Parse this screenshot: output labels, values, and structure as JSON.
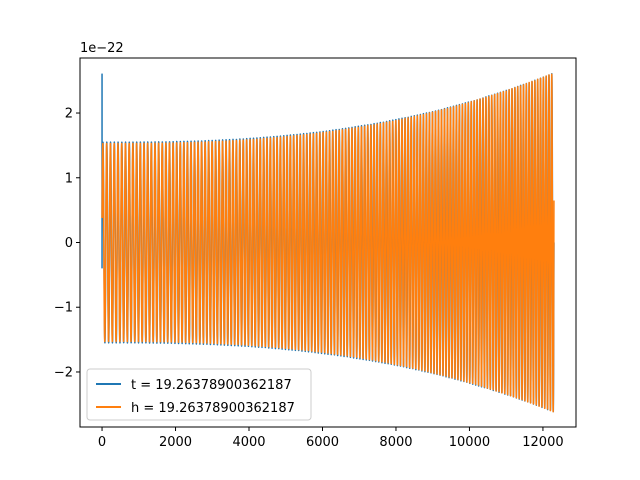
{
  "chart_data": {
    "type": "line",
    "title": "",
    "xlabel": "",
    "ylabel": "",
    "offset_label": "1e−22",
    "xlim": [
      -600,
      12900
    ],
    "ylim": [
      -2.85,
      2.85
    ],
    "x_ticks": [
      0,
      2000,
      4000,
      6000,
      8000,
      10000,
      12000
    ],
    "x_tick_labels": [
      "0",
      "2000",
      "4000",
      "6000",
      "8000",
      "10000",
      "12000"
    ],
    "y_ticks": [
      -2,
      -1,
      0,
      1,
      2
    ],
    "y_tick_labels": [
      "−2",
      "−1",
      "0",
      "1",
      "2"
    ],
    "grid": false,
    "legend_position": "lower-left",
    "series": [
      {
        "name": "t = 19.26378900362187",
        "color": "#1f77b4",
        "x_start": 0,
        "x_end": 12300,
        "initial_spike": 2.6,
        "amplitude_start": 1.55,
        "amplitude_end": 2.62,
        "cycles": 140
      },
      {
        "name": "h = 19.26378900362187",
        "color": "#ff7f0e",
        "x_start": 0,
        "x_end": 12300,
        "amplitude_start": 1.53,
        "amplitude_end": 2.62,
        "cycles": 140
      }
    ]
  }
}
